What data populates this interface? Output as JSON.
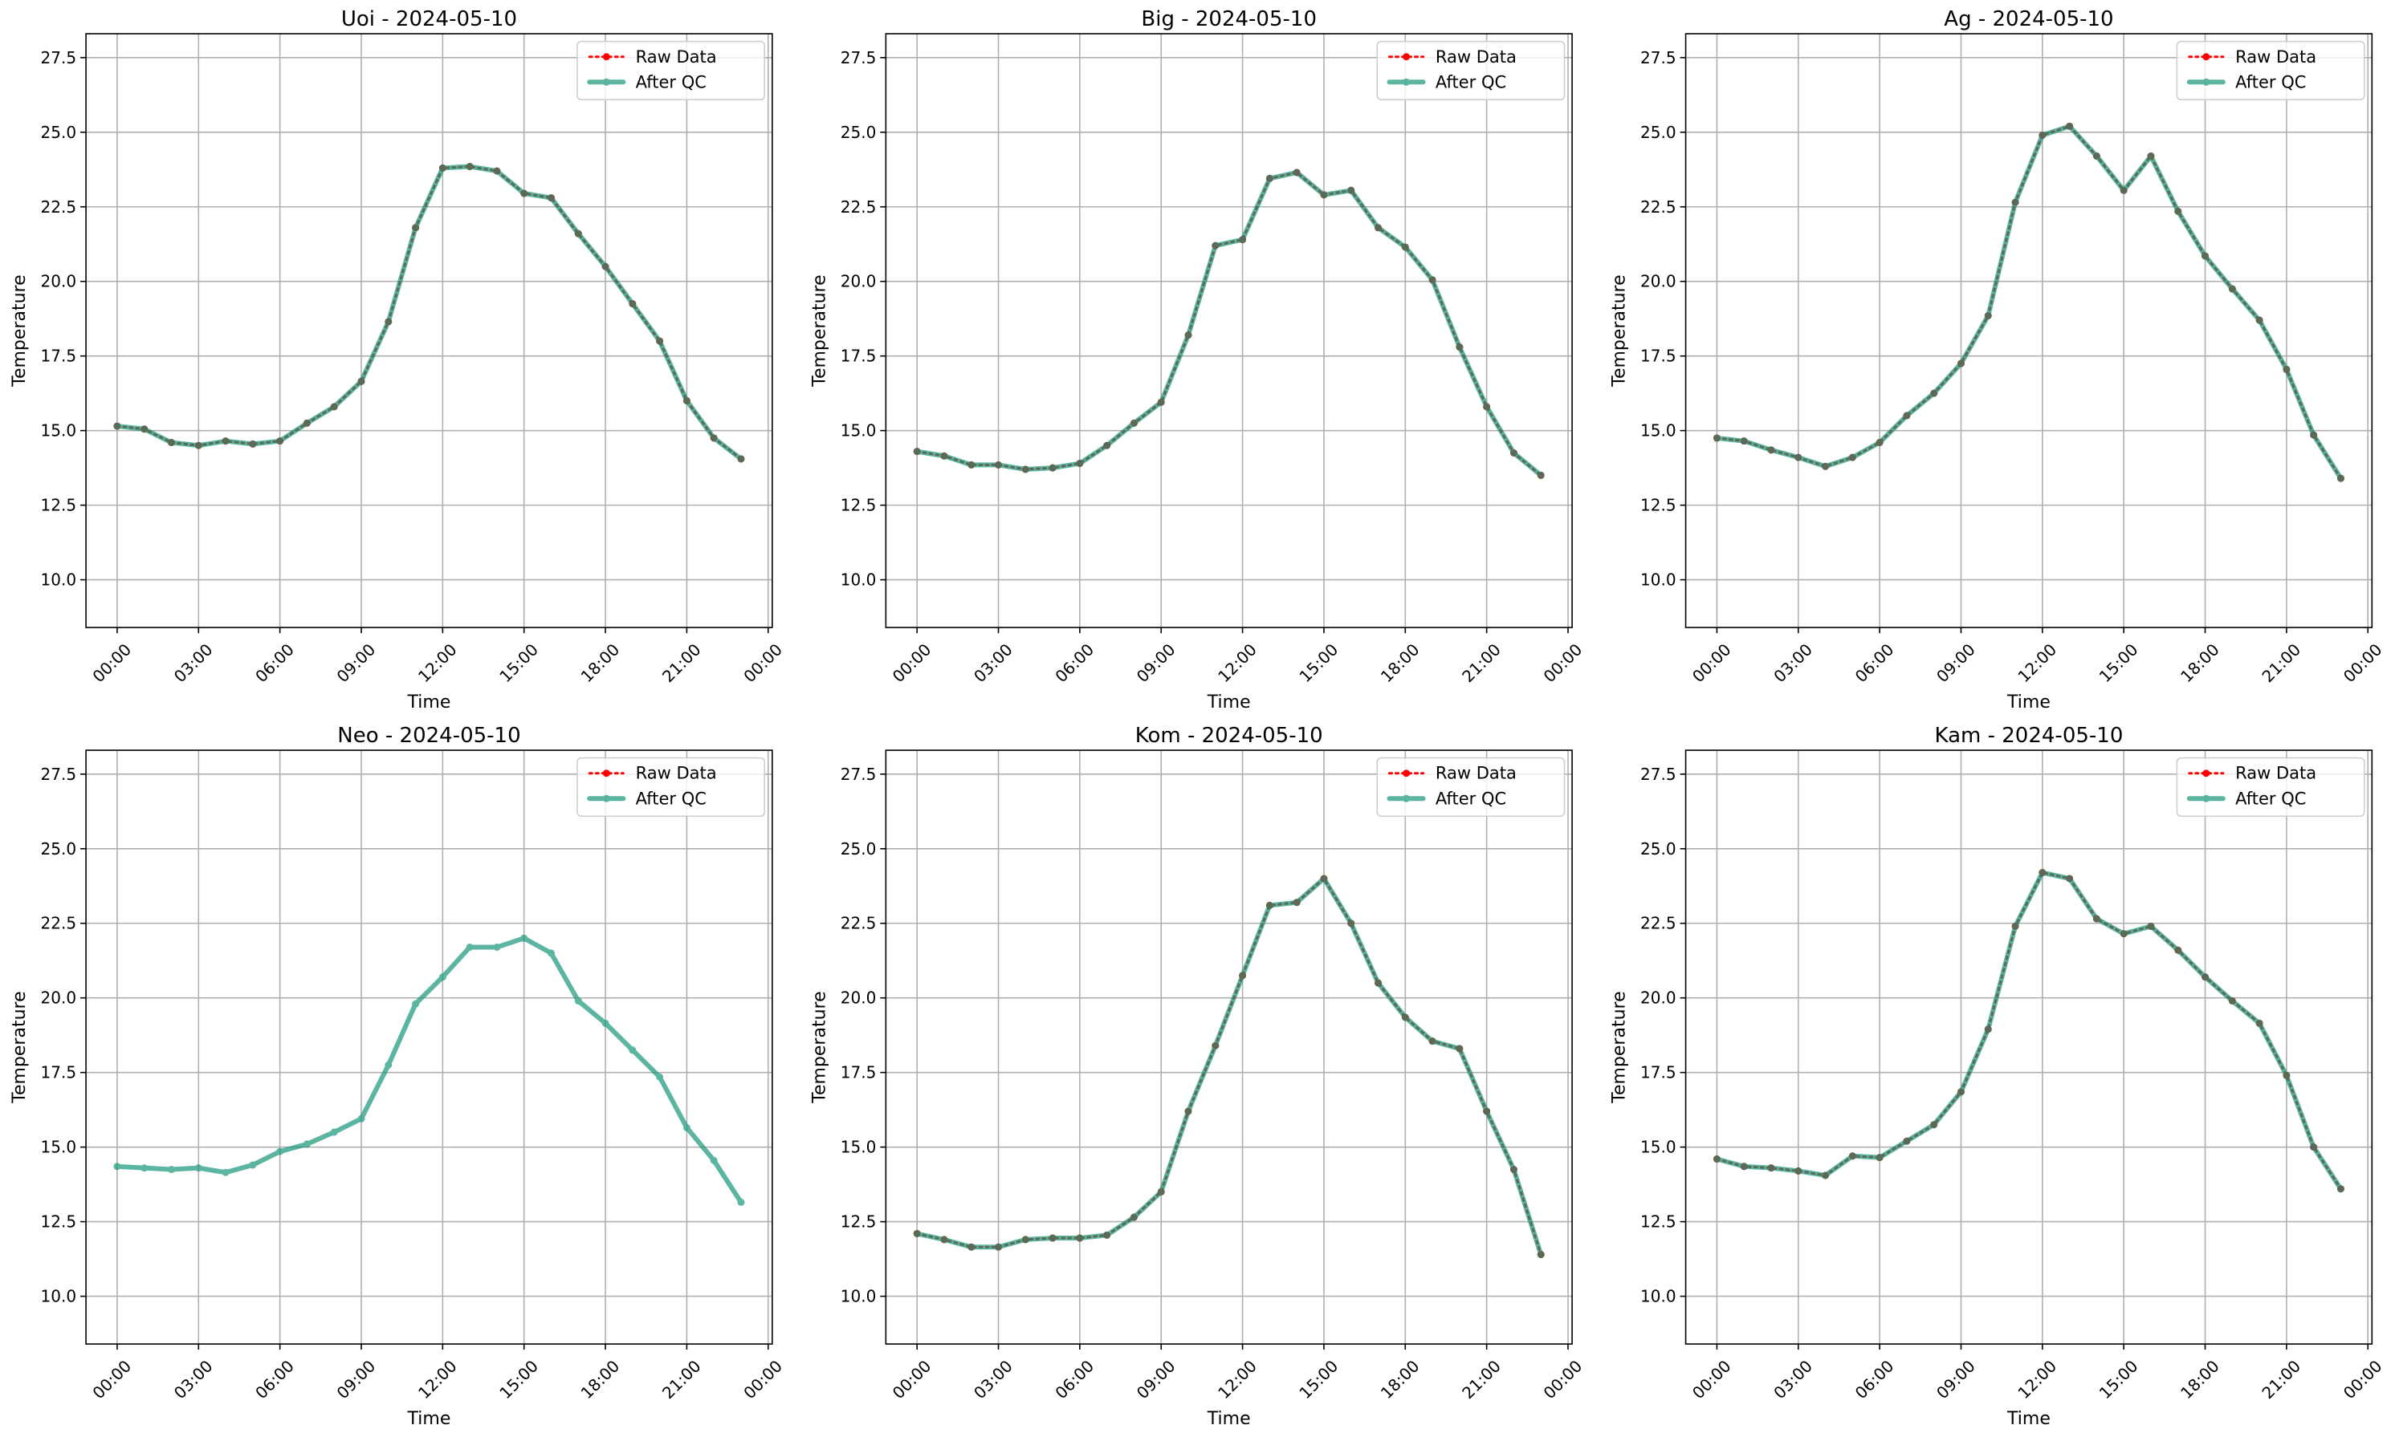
{
  "chart_data": [
    {
      "type": "line",
      "title": "Uoi - 2024-05-10",
      "xlabel": "Time",
      "ylabel": "Temperature",
      "x": [
        0,
        1,
        2,
        3,
        4,
        5,
        6,
        7,
        8,
        9,
        10,
        11,
        12,
        13,
        14,
        15,
        16,
        17,
        18,
        19,
        20,
        21,
        22,
        23
      ],
      "xlim": [
        -1.15,
        24.15
      ],
      "xticks": [
        {
          "value": 0,
          "label": "00:00"
        },
        {
          "value": 3,
          "label": "03:00"
        },
        {
          "value": 6,
          "label": "06:00"
        },
        {
          "value": 9,
          "label": "09:00"
        },
        {
          "value": 12,
          "label": "12:00"
        },
        {
          "value": 15,
          "label": "15:00"
        },
        {
          "value": 18,
          "label": "18:00"
        },
        {
          "value": 21,
          "label": "21:00"
        },
        {
          "value": 24,
          "label": "00:00"
        }
      ],
      "ylim": [
        8.4,
        28.3
      ],
      "yticks": [
        {
          "value": 10,
          "label": "10.0"
        },
        12.5,
        {
          "value": 15,
          "label": "15.0"
        },
        17.5,
        {
          "value": 20,
          "label": "20.0"
        },
        22.5,
        {
          "value": 25,
          "label": "25.0"
        },
        27.5
      ],
      "grid": true,
      "legend": "upper right",
      "series": [
        {
          "name": "Raw Data",
          "color": "#ff0000",
          "values": [
            15.15,
            15.05,
            14.6,
            14.5,
            14.65,
            14.55,
            14.65,
            15.25,
            15.8,
            16.65,
            18.65,
            21.8,
            23.8,
            23.85,
            23.7,
            22.95,
            22.8,
            21.6,
            20.5,
            19.25,
            18.0,
            16.0,
            14.75,
            14.05
          ]
        },
        {
          "name": "After QC",
          "color": "#16977a",
          "values": [
            15.15,
            15.05,
            14.6,
            14.5,
            14.65,
            14.55,
            14.65,
            15.25,
            15.8,
            16.65,
            18.65,
            21.8,
            23.8,
            23.85,
            23.7,
            22.95,
            22.8,
            21.6,
            20.5,
            19.25,
            18.0,
            16.0,
            14.75,
            14.05
          ]
        }
      ]
    },
    {
      "type": "line",
      "title": "Big - 2024-05-10",
      "xlabel": "Time",
      "ylabel": "Temperature",
      "x": [
        0,
        1,
        2,
        3,
        4,
        5,
        6,
        7,
        8,
        9,
        10,
        11,
        12,
        13,
        14,
        15,
        16,
        17,
        18,
        19,
        20,
        21,
        22,
        23
      ],
      "xlim": [
        -1.15,
        24.15
      ],
      "xticks": [
        {
          "value": 0,
          "label": "00:00"
        },
        {
          "value": 3,
          "label": "03:00"
        },
        {
          "value": 6,
          "label": "06:00"
        },
        {
          "value": 9,
          "label": "09:00"
        },
        {
          "value": 12,
          "label": "12:00"
        },
        {
          "value": 15,
          "label": "15:00"
        },
        {
          "value": 18,
          "label": "18:00"
        },
        {
          "value": 21,
          "label": "21:00"
        },
        {
          "value": 24,
          "label": "00:00"
        }
      ],
      "ylim": [
        8.4,
        28.3
      ],
      "yticks": [
        {
          "value": 10,
          "label": "10.0"
        },
        12.5,
        {
          "value": 15,
          "label": "15.0"
        },
        17.5,
        {
          "value": 20,
          "label": "20.0"
        },
        22.5,
        {
          "value": 25,
          "label": "25.0"
        },
        27.5
      ],
      "grid": true,
      "legend": "upper right",
      "series": [
        {
          "name": "Raw Data",
          "color": "#ff0000",
          "values": [
            14.3,
            14.15,
            13.85,
            13.85,
            13.7,
            13.75,
            13.9,
            14.5,
            15.25,
            15.95,
            18.2,
            21.2,
            21.4,
            23.45,
            23.65,
            22.9,
            23.05,
            21.8,
            21.15,
            20.05,
            17.8,
            15.8,
            14.25,
            13.5
          ]
        },
        {
          "name": "After QC",
          "color": "#16977a",
          "values": [
            14.3,
            14.15,
            13.85,
            13.85,
            13.7,
            13.75,
            13.9,
            14.5,
            15.25,
            15.95,
            18.2,
            21.2,
            21.4,
            23.45,
            23.65,
            22.9,
            23.05,
            21.8,
            21.15,
            20.05,
            17.8,
            15.8,
            14.25,
            13.5
          ]
        }
      ]
    },
    {
      "type": "line",
      "title": "Ag - 2024-05-10",
      "xlabel": "Time",
      "ylabel": "Temperature",
      "x": [
        0,
        1,
        2,
        3,
        4,
        5,
        6,
        7,
        8,
        9,
        10,
        11,
        12,
        13,
        14,
        15,
        16,
        17,
        18,
        19,
        20,
        21,
        22,
        23
      ],
      "xlim": [
        -1.15,
        24.15
      ],
      "xticks": [
        {
          "value": 0,
          "label": "00:00"
        },
        {
          "value": 3,
          "label": "03:00"
        },
        {
          "value": 6,
          "label": "06:00"
        },
        {
          "value": 9,
          "label": "09:00"
        },
        {
          "value": 12,
          "label": "12:00"
        },
        {
          "value": 15,
          "label": "15:00"
        },
        {
          "value": 18,
          "label": "18:00"
        },
        {
          "value": 21,
          "label": "21:00"
        },
        {
          "value": 24,
          "label": "00:00"
        }
      ],
      "ylim": [
        8.4,
        28.3
      ],
      "yticks": [
        {
          "value": 10,
          "label": "10.0"
        },
        12.5,
        {
          "value": 15,
          "label": "15.0"
        },
        17.5,
        {
          "value": 20,
          "label": "20.0"
        },
        22.5,
        {
          "value": 25,
          "label": "25.0"
        },
        27.5
      ],
      "grid": true,
      "legend": "upper right",
      "series": [
        {
          "name": "Raw Data",
          "color": "#ff0000",
          "values": [
            14.75,
            14.65,
            14.35,
            14.1,
            13.8,
            14.1,
            14.6,
            15.5,
            16.25,
            17.25,
            18.85,
            22.65,
            24.9,
            25.2,
            24.2,
            23.05,
            24.2,
            22.35,
            20.85,
            19.75,
            18.7,
            17.05,
            14.85,
            13.4
          ]
        },
        {
          "name": "After QC",
          "color": "#16977a",
          "values": [
            14.75,
            14.65,
            14.35,
            14.1,
            13.8,
            14.1,
            14.6,
            15.5,
            16.25,
            17.25,
            18.85,
            22.65,
            24.9,
            25.2,
            24.2,
            23.05,
            24.2,
            22.35,
            20.85,
            19.75,
            18.7,
            17.05,
            14.85,
            13.4
          ]
        }
      ]
    },
    {
      "type": "line",
      "title": "Neo - 2024-05-10",
      "xlabel": "Time",
      "ylabel": "Temperature",
      "x": [
        0,
        1,
        2,
        3,
        4,
        5,
        6,
        7,
        8,
        9,
        10,
        11,
        12,
        13,
        14,
        15,
        16,
        17,
        18,
        19,
        20,
        21,
        22,
        23
      ],
      "xlim": [
        -1.15,
        24.15
      ],
      "xticks": [
        {
          "value": 0,
          "label": "00:00"
        },
        {
          "value": 3,
          "label": "03:00"
        },
        {
          "value": 6,
          "label": "06:00"
        },
        {
          "value": 9,
          "label": "09:00"
        },
        {
          "value": 12,
          "label": "12:00"
        },
        {
          "value": 15,
          "label": "15:00"
        },
        {
          "value": 18,
          "label": "18:00"
        },
        {
          "value": 21,
          "label": "21:00"
        },
        {
          "value": 24,
          "label": "00:00"
        }
      ],
      "ylim": [
        8.4,
        28.3
      ],
      "yticks": [
        {
          "value": 10,
          "label": "10.0"
        },
        12.5,
        {
          "value": 15,
          "label": "15.0"
        },
        17.5,
        {
          "value": 20,
          "label": "20.0"
        },
        22.5,
        {
          "value": 25,
          "label": "25.0"
        },
        27.5
      ],
      "grid": true,
      "legend": "upper right",
      "series": [
        {
          "name": "Raw Data",
          "color": "#ff0000",
          "values": [
            null,
            null,
            null,
            null,
            null,
            null,
            null,
            null,
            null,
            null,
            null,
            null,
            null,
            null,
            null,
            null,
            null,
            null,
            null,
            null,
            null,
            null,
            null,
            null
          ]
        },
        {
          "name": "After QC",
          "color": "#16977a",
          "values": [
            14.35,
            14.3,
            14.25,
            14.3,
            14.15,
            14.4,
            14.85,
            15.1,
            15.5,
            15.95,
            17.75,
            19.8,
            20.7,
            21.7,
            21.7,
            22.0,
            21.5,
            19.9,
            19.15,
            18.25,
            17.35,
            15.65,
            14.55,
            13.15
          ]
        }
      ]
    },
    {
      "type": "line",
      "title": "Kom - 2024-05-10",
      "xlabel": "Time",
      "ylabel": "Temperature",
      "x": [
        0,
        1,
        2,
        3,
        4,
        5,
        6,
        7,
        8,
        9,
        10,
        11,
        12,
        13,
        14,
        15,
        16,
        17,
        18,
        19,
        20,
        21,
        22,
        23
      ],
      "xlim": [
        -1.15,
        24.15
      ],
      "xticks": [
        {
          "value": 0,
          "label": "00:00"
        },
        {
          "value": 3,
          "label": "03:00"
        },
        {
          "value": 6,
          "label": "06:00"
        },
        {
          "value": 9,
          "label": "09:00"
        },
        {
          "value": 12,
          "label": "12:00"
        },
        {
          "value": 15,
          "label": "15:00"
        },
        {
          "value": 18,
          "label": "18:00"
        },
        {
          "value": 21,
          "label": "21:00"
        },
        {
          "value": 24,
          "label": "00:00"
        }
      ],
      "ylim": [
        8.4,
        28.3
      ],
      "yticks": [
        {
          "value": 10,
          "label": "10.0"
        },
        12.5,
        {
          "value": 15,
          "label": "15.0"
        },
        17.5,
        {
          "value": 20,
          "label": "20.0"
        },
        22.5,
        {
          "value": 25,
          "label": "25.0"
        },
        27.5
      ],
      "grid": true,
      "legend": "upper right",
      "series": [
        {
          "name": "Raw Data",
          "color": "#ff0000",
          "values": [
            12.1,
            11.9,
            11.65,
            11.65,
            11.9,
            11.95,
            11.95,
            12.05,
            12.65,
            13.5,
            16.2,
            18.4,
            20.75,
            23.1,
            23.2,
            24.0,
            22.5,
            20.5,
            19.35,
            18.55,
            18.3,
            16.2,
            14.25,
            11.4
          ]
        },
        {
          "name": "After QC",
          "color": "#16977a",
          "values": [
            12.1,
            11.9,
            11.65,
            11.65,
            11.9,
            11.95,
            11.95,
            12.05,
            12.65,
            13.5,
            16.2,
            18.4,
            20.75,
            23.1,
            23.2,
            24.0,
            22.5,
            20.5,
            19.35,
            18.55,
            18.3,
            16.2,
            14.25,
            11.4
          ]
        }
      ]
    },
    {
      "type": "line",
      "title": "Kam - 2024-05-10",
      "xlabel": "Time",
      "ylabel": "Temperature",
      "x": [
        0,
        1,
        2,
        3,
        4,
        5,
        6,
        7,
        8,
        9,
        10,
        11,
        12,
        13,
        14,
        15,
        16,
        17,
        18,
        19,
        20,
        21,
        22,
        23
      ],
      "xlim": [
        -1.15,
        24.15
      ],
      "xticks": [
        {
          "value": 0,
          "label": "00:00"
        },
        {
          "value": 3,
          "label": "03:00"
        },
        {
          "value": 6,
          "label": "06:00"
        },
        {
          "value": 9,
          "label": "09:00"
        },
        {
          "value": 12,
          "label": "12:00"
        },
        {
          "value": 15,
          "label": "15:00"
        },
        {
          "value": 18,
          "label": "18:00"
        },
        {
          "value": 21,
          "label": "21:00"
        },
        {
          "value": 24,
          "label": "00:00"
        }
      ],
      "ylim": [
        8.4,
        28.3
      ],
      "yticks": [
        {
          "value": 10,
          "label": "10.0"
        },
        12.5,
        {
          "value": 15,
          "label": "15.0"
        },
        17.5,
        {
          "value": 20,
          "label": "20.0"
        },
        22.5,
        {
          "value": 25,
          "label": "25.0"
        },
        27.5
      ],
      "grid": true,
      "legend": "upper right",
      "series": [
        {
          "name": "Raw Data",
          "color": "#ff0000",
          "values": [
            14.6,
            14.35,
            14.3,
            14.2,
            14.05,
            14.7,
            14.65,
            15.2,
            15.75,
            16.85,
            18.95,
            22.4,
            24.2,
            24.0,
            22.65,
            22.15,
            22.4,
            21.6,
            20.7,
            19.9,
            19.15,
            17.4,
            15.0,
            13.6
          ]
        },
        {
          "name": "After QC",
          "color": "#16977a",
          "values": [
            14.6,
            14.35,
            14.3,
            14.2,
            14.05,
            14.7,
            14.65,
            15.2,
            15.75,
            16.85,
            18.95,
            22.4,
            24.2,
            24.0,
            22.65,
            22.15,
            22.4,
            21.6,
            20.7,
            19.9,
            19.15,
            17.4,
            15.0,
            13.6
          ]
        }
      ]
    }
  ]
}
